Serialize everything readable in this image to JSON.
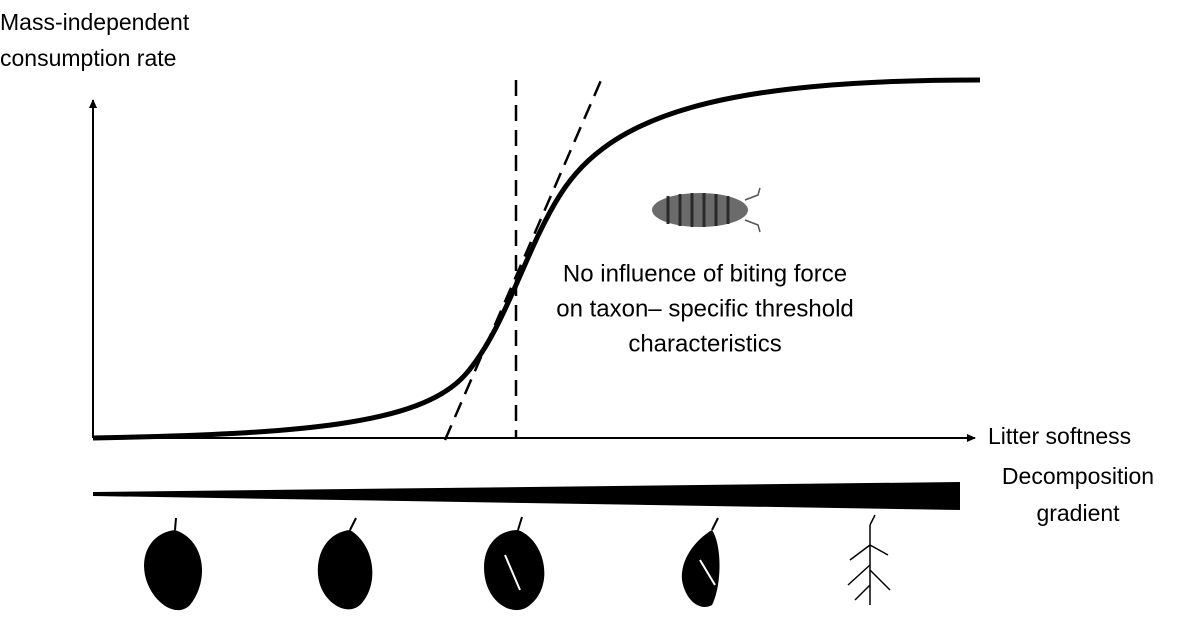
{
  "y_axis_label": [
    "Mass-independent",
    "consumption rate"
  ],
  "x_axis_label": "Litter softness",
  "gradient_label": [
    "Decomposition",
    "gradient"
  ],
  "annotation": [
    "No influence of biting force",
    "on taxon– specific threshold",
    "characteristics"
  ]
}
